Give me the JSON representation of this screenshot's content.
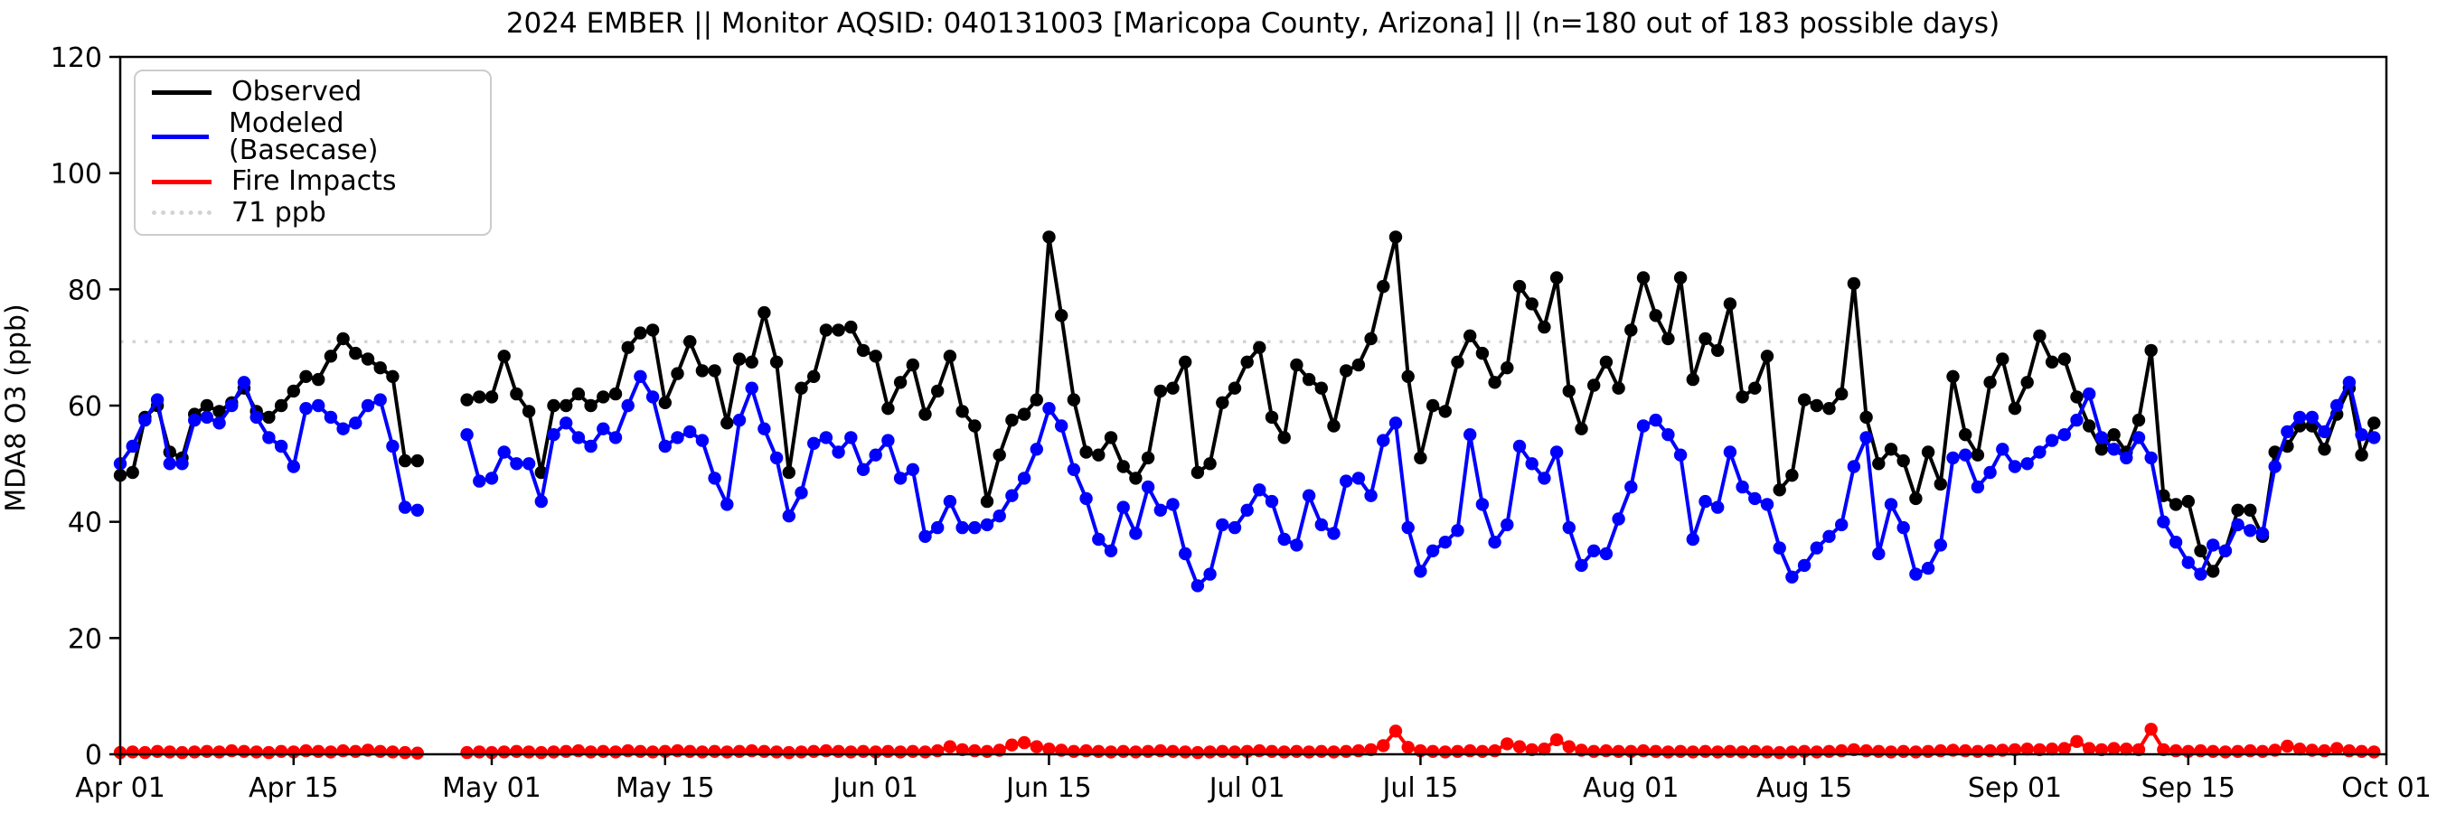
{
  "title": "2024 EMBER || Monitor AQSID: 040131003 [Maricopa County, Arizona] || (n=180 out of 183 possible days)",
  "y_axis": {
    "label": "MDA8 O3 (ppb)",
    "ticks": [
      0,
      20,
      40,
      60,
      80,
      100,
      120
    ],
    "range": [
      0,
      120
    ]
  },
  "x_axis": {
    "tick_labels": [
      "Apr 01",
      "Apr 15",
      "May 01",
      "May 15",
      "Jun 01",
      "Jun 15",
      "Jul 01",
      "Jul 15",
      "Aug 01",
      "Aug 15",
      "Sep 01",
      "Sep 15",
      "Oct 01"
    ],
    "tick_day_index": [
      0,
      14,
      30,
      44,
      61,
      75,
      91,
      105,
      122,
      136,
      153,
      167,
      183
    ]
  },
  "legend": [
    {
      "label": "Observed",
      "color": "#000000",
      "style": "solid"
    },
    {
      "label": "Modeled (Basecase)",
      "color": "#0000ff",
      "style": "solid"
    },
    {
      "label": "Fire Impacts",
      "color": "#ff0000",
      "style": "solid"
    },
    {
      "label": "71 ppb",
      "color": "#d3d3d3",
      "style": "dotted"
    }
  ],
  "colors": {
    "observed": "#000000",
    "modeled": "#0000ff",
    "fire": "#ff0000",
    "reference": "#d3d3d3",
    "spine": "#000000",
    "background": "#ffffff"
  },
  "chart_data": {
    "type": "line",
    "title": "2024 EMBER || Monitor AQSID: 040131003 [Maricopa County, Arizona] || (n=180 out of 183 possible days)",
    "xlabel": "",
    "ylabel": "MDA8 O3 (ppb)",
    "ylim": [
      0,
      120
    ],
    "grid": false,
    "legend_position": "upper left",
    "reference_line": {
      "label": "71 ppb",
      "value": 71,
      "color": "#d3d3d3",
      "style": "dotted"
    },
    "missing_dates": [
      "Apr 26",
      "Apr 27",
      "Apr 28"
    ],
    "x": [
      "Apr 01",
      "Apr 02",
      "Apr 03",
      "Apr 04",
      "Apr 05",
      "Apr 06",
      "Apr 07",
      "Apr 08",
      "Apr 09",
      "Apr 10",
      "Apr 11",
      "Apr 12",
      "Apr 13",
      "Apr 14",
      "Apr 15",
      "Apr 16",
      "Apr 17",
      "Apr 18",
      "Apr 19",
      "Apr 20",
      "Apr 21",
      "Apr 22",
      "Apr 23",
      "Apr 24",
      "Apr 25",
      "Apr 26",
      "Apr 27",
      "Apr 28",
      "Apr 29",
      "Apr 30",
      "May 01",
      "May 02",
      "May 03",
      "May 04",
      "May 05",
      "May 06",
      "May 07",
      "May 08",
      "May 09",
      "May 10",
      "May 11",
      "May 12",
      "May 13",
      "May 14",
      "May 15",
      "May 16",
      "May 17",
      "May 18",
      "May 19",
      "May 20",
      "May 21",
      "May 22",
      "May 23",
      "May 24",
      "May 25",
      "May 26",
      "May 27",
      "May 28",
      "May 29",
      "May 30",
      "May 31",
      "Jun 01",
      "Jun 02",
      "Jun 03",
      "Jun 04",
      "Jun 05",
      "Jun 06",
      "Jun 07",
      "Jun 08",
      "Jun 09",
      "Jun 10",
      "Jun 11",
      "Jun 12",
      "Jun 13",
      "Jun 14",
      "Jun 15",
      "Jun 16",
      "Jun 17",
      "Jun 18",
      "Jun 19",
      "Jun 20",
      "Jun 21",
      "Jun 22",
      "Jun 23",
      "Jun 24",
      "Jun 25",
      "Jun 26",
      "Jun 27",
      "Jun 28",
      "Jun 29",
      "Jun 30",
      "Jul 01",
      "Jul 02",
      "Jul 03",
      "Jul 04",
      "Jul 05",
      "Jul 06",
      "Jul 07",
      "Jul 08",
      "Jul 09",
      "Jul 10",
      "Jul 11",
      "Jul 12",
      "Jul 13",
      "Jul 14",
      "Jul 15",
      "Jul 16",
      "Jul 17",
      "Jul 18",
      "Jul 19",
      "Jul 20",
      "Jul 21",
      "Jul 22",
      "Jul 23",
      "Jul 24",
      "Jul 25",
      "Jul 26",
      "Jul 27",
      "Jul 28",
      "Jul 29",
      "Jul 30",
      "Jul 31",
      "Aug 01",
      "Aug 02",
      "Aug 03",
      "Aug 04",
      "Aug 05",
      "Aug 06",
      "Aug 07",
      "Aug 08",
      "Aug 09",
      "Aug 10",
      "Aug 11",
      "Aug 12",
      "Aug 13",
      "Aug 14",
      "Aug 15",
      "Aug 16",
      "Aug 17",
      "Aug 18",
      "Aug 19",
      "Aug 20",
      "Aug 21",
      "Aug 22",
      "Aug 23",
      "Aug 24",
      "Aug 25",
      "Aug 26",
      "Aug 27",
      "Aug 28",
      "Aug 29",
      "Aug 30",
      "Aug 31",
      "Sep 01",
      "Sep 02",
      "Sep 03",
      "Sep 04",
      "Sep 05",
      "Sep 06",
      "Sep 07",
      "Sep 08",
      "Sep 09",
      "Sep 10",
      "Sep 11",
      "Sep 12",
      "Sep 13",
      "Sep 14",
      "Sep 15",
      "Sep 16",
      "Sep 17",
      "Sep 18",
      "Sep 19",
      "Sep 20",
      "Sep 21",
      "Sep 22",
      "Sep 23",
      "Sep 24",
      "Sep 25",
      "Sep 26",
      "Sep 27",
      "Sep 28",
      "Sep 29",
      "Sep 30"
    ],
    "series": [
      {
        "name": "Observed",
        "color": "#000000",
        "values": [
          48,
          48.5,
          58,
          60,
          52,
          51,
          58.5,
          60,
          59,
          60.5,
          63,
          59,
          58,
          60,
          62.5,
          65,
          64.5,
          68.5,
          71.5,
          69,
          68,
          66.5,
          65,
          50.5,
          50.5,
          null,
          null,
          null,
          61,
          61.5,
          61.5,
          68.5,
          62,
          59,
          48.5,
          60,
          60,
          62,
          60,
          61.5,
          62,
          70,
          72.5,
          73,
          60.5,
          65.5,
          71,
          66,
          66,
          57,
          68,
          67.5,
          76,
          67.5,
          48.5,
          63,
          65,
          73,
          73,
          73.5,
          69.5,
          68.5,
          59.5,
          64,
          67,
          58.5,
          62.5,
          68.5,
          59,
          56.5,
          43.5,
          51.5,
          57.5,
          58.5,
          61,
          89,
          75.5,
          61,
          52,
          51.5,
          54.5,
          49.5,
          47.5,
          51,
          62.5,
          63,
          67.5,
          48.5,
          50,
          60.5,
          63,
          67.5,
          70,
          58,
          54.5,
          67,
          64.5,
          63,
          56.5,
          66,
          67,
          71.5,
          80.5,
          89,
          65,
          51,
          60,
          59,
          67.5,
          72,
          69,
          64,
          66.5,
          80.5,
          77.5,
          73.5,
          82,
          62.5,
          56,
          63.5,
          67.5,
          63,
          73,
          82,
          75.5,
          71.5,
          82,
          64.5,
          71.5,
          69.5,
          77.5,
          61.5,
          63,
          68.5,
          45.5,
          48,
          61,
          60,
          59.5,
          62,
          81,
          58,
          50,
          52.5,
          50.5,
          44,
          52,
          46.5,
          65,
          55,
          51.5,
          64,
          68,
          59.5,
          64,
          72,
          67.5,
          68,
          61.5,
          56.5,
          52.5,
          55,
          52,
          57.5,
          69.5,
          44.5,
          43,
          43.5,
          35,
          31.5,
          35,
          42,
          42,
          37.5,
          52,
          53,
          56.5,
          56.5,
          52.5,
          58.5,
          63,
          51.5,
          57
        ]
      },
      {
        "name": "Modeled (Basecase)",
        "color": "#0000ff",
        "values": [
          50,
          53,
          57.5,
          61,
          50,
          50,
          57.5,
          58,
          57,
          60,
          64,
          58,
          54.5,
          53,
          49.5,
          59.5,
          60,
          58,
          56,
          57,
          60,
          61,
          53,
          42.5,
          42,
          null,
          null,
          null,
          55,
          47,
          47.5,
          52,
          50,
          50,
          43.5,
          55,
          57,
          54.5,
          53,
          56,
          54.5,
          60,
          65,
          61.5,
          53,
          54.5,
          55.5,
          54,
          47.5,
          43,
          57.5,
          63,
          56,
          51,
          41,
          45,
          53.5,
          54.5,
          52,
          54.5,
          49,
          51.5,
          54,
          47.5,
          49,
          37.5,
          39,
          43.5,
          39,
          39,
          39.5,
          41,
          44.5,
          47.5,
          52.5,
          59.5,
          56.5,
          49,
          44,
          37,
          35,
          42.5,
          38,
          46,
          42,
          43,
          34.5,
          29,
          31,
          39.5,
          39,
          42,
          45.5,
          43.5,
          37,
          36,
          44.5,
          39.5,
          38,
          47,
          47.5,
          44.5,
          54,
          57,
          39,
          31.5,
          35,
          36.5,
          38.5,
          55,
          43,
          36.5,
          39.5,
          53,
          50,
          47.5,
          52,
          39,
          32.5,
          35,
          34.5,
          40.5,
          46,
          56.5,
          57.5,
          55,
          51.5,
          37,
          43.5,
          42.5,
          52,
          46,
          44,
          43,
          35.5,
          30.5,
          32.5,
          35.5,
          37.5,
          39.5,
          49.5,
          54.5,
          34.5,
          43,
          39,
          31,
          32,
          36,
          51,
          51.5,
          46,
          48.5,
          52.5,
          49.5,
          50,
          52,
          54,
          55,
          57.5,
          62,
          54.5,
          52.5,
          51,
          54.5,
          51,
          40,
          36.5,
          33,
          31,
          36,
          35,
          39.5,
          38.5,
          38,
          49.5,
          55.5,
          58,
          58,
          55.5,
          60,
          64,
          55,
          54.5
        ]
      },
      {
        "name": "Fire Impacts",
        "color": "#ff0000",
        "values": [
          0.3,
          0.4,
          0.3,
          0.5,
          0.4,
          0.3,
          0.4,
          0.5,
          0.4,
          0.6,
          0.5,
          0.4,
          0.3,
          0.5,
          0.4,
          0.6,
          0.5,
          0.4,
          0.6,
          0.5,
          0.7,
          0.5,
          0.4,
          0.3,
          0.2,
          null,
          null,
          null,
          0.3,
          0.4,
          0.3,
          0.4,
          0.5,
          0.4,
          0.3,
          0.4,
          0.5,
          0.6,
          0.4,
          0.5,
          0.4,
          0.6,
          0.5,
          0.4,
          0.5,
          0.6,
          0.5,
          0.4,
          0.5,
          0.4,
          0.5,
          0.6,
          0.5,
          0.4,
          0.3,
          0.4,
          0.5,
          0.6,
          0.5,
          0.4,
          0.5,
          0.4,
          0.5,
          0.4,
          0.5,
          0.4,
          0.6,
          1.3,
          0.8,
          0.6,
          0.5,
          0.7,
          1.6,
          2.0,
          1.3,
          0.9,
          0.7,
          0.5,
          0.6,
          0.5,
          0.4,
          0.5,
          0.4,
          0.5,
          0.6,
          0.5,
          0.4,
          0.3,
          0.4,
          0.5,
          0.4,
          0.5,
          0.6,
          0.5,
          0.4,
          0.5,
          0.4,
          0.5,
          0.4,
          0.5,
          0.6,
          0.8,
          1.5,
          4.0,
          1.2,
          0.6,
          0.5,
          0.4,
          0.5,
          0.6,
          0.5,
          0.6,
          1.8,
          1.3,
          0.8,
          0.9,
          2.5,
          1.3,
          0.7,
          0.5,
          0.6,
          0.5,
          0.5,
          0.6,
          0.5,
          0.4,
          0.5,
          0.4,
          0.5,
          0.4,
          0.5,
          0.4,
          0.5,
          0.4,
          0.3,
          0.4,
          0.5,
          0.4,
          0.5,
          0.6,
          0.8,
          0.6,
          0.5,
          0.4,
          0.5,
          0.4,
          0.5,
          0.6,
          0.7,
          0.6,
          0.5,
          0.6,
          0.7,
          0.8,
          0.9,
          0.8,
          0.9,
          1.0,
          2.2,
          1.0,
          0.8,
          1.0,
          0.9,
          0.8,
          4.3,
          0.8,
          0.6,
          0.5,
          0.6,
          0.5,
          0.4,
          0.5,
          0.6,
          0.5,
          0.7,
          1.4,
          0.9,
          0.7,
          0.6,
          1.0,
          0.6,
          0.5,
          0.4
        ]
      }
    ]
  }
}
